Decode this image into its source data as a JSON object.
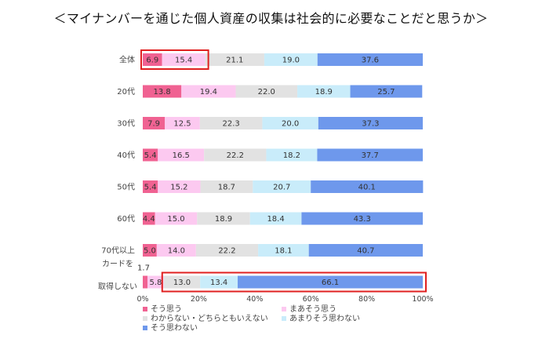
{
  "chart_data": {
    "type": "bar",
    "orientation": "horizontal",
    "stacked": "percent",
    "title": "＜マイナンバーを通じた個人資産の収集は社会的に必要なことだと思うか＞",
    "categories": [
      "全体",
      "20代",
      "30代",
      "40代",
      "50代",
      "60代",
      "70代以上",
      "カードを取得しない"
    ],
    "category_lines": [
      [
        "全体"
      ],
      [
        "20代"
      ],
      [
        "30代"
      ],
      [
        "40代"
      ],
      [
        "50代"
      ],
      [
        "60代"
      ],
      [
        "70代以上"
      ],
      [
        "カードを",
        "取得しない"
      ]
    ],
    "series": [
      {
        "name": "そう思う",
        "color": "#f06292",
        "values": [
          6.9,
          13.8,
          7.9,
          5.4,
          5.4,
          4.4,
          5.0,
          1.7
        ]
      },
      {
        "name": "まあそう思う",
        "color": "#fcc9f0",
        "values": [
          15.4,
          19.4,
          12.5,
          16.5,
          15.2,
          15.0,
          14.0,
          5.8
        ]
      },
      {
        "name": "わからない・どちらともいえない",
        "color": "#e2e2e2",
        "values": [
          21.1,
          22.0,
          22.3,
          22.2,
          18.7,
          18.9,
          22.2,
          13.0
        ]
      },
      {
        "name": "あまりそう思わない",
        "color": "#c9ecfa",
        "values": [
          19.0,
          18.9,
          20.0,
          18.2,
          20.7,
          18.4,
          18.1,
          13.4
        ]
      },
      {
        "name": "そう思わない",
        "color": "#6e98ec",
        "values": [
          37.6,
          25.7,
          37.3,
          37.7,
          40.1,
          43.3,
          40.7,
          66.1
        ]
      }
    ],
    "x_ticks": [
      "0%",
      "20%",
      "40%",
      "60%",
      "80%",
      "100%"
    ],
    "xlim": [
      0,
      100
    ],
    "grid": false,
    "legend": "bottom-left",
    "highlight_boxes": [
      {
        "category": "全体",
        "from_series": 0,
        "to_series": 1,
        "color": "#e02020"
      },
      {
        "category": "カードを取得しない",
        "from_series": 2,
        "to_series": 4,
        "color": "#e02020"
      }
    ]
  }
}
